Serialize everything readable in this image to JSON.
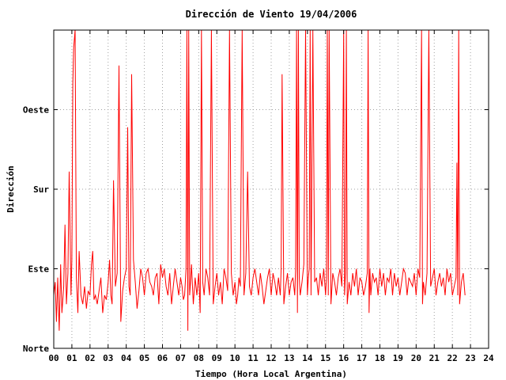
{
  "chart_data": {
    "type": "line",
    "title": "Dirección de Viento 19/04/2006",
    "xlabel": "Tiempo (Hora Local Argentina)",
    "ylabel": "Dirección",
    "xlim": [
      0,
      24
    ],
    "ylim": [
      0,
      360
    ],
    "x_ticks": [
      0,
      1,
      2,
      3,
      4,
      5,
      6,
      7,
      8,
      9,
      10,
      11,
      12,
      13,
      14,
      15,
      16,
      17,
      18,
      19,
      20,
      21,
      22,
      23,
      24
    ],
    "x_tick_labels": [
      "00",
      "01",
      "02",
      "03",
      "04",
      "05",
      "06",
      "07",
      "08",
      "09",
      "10",
      "11",
      "12",
      "13",
      "14",
      "15",
      "16",
      "17",
      "18",
      "19",
      "20",
      "21",
      "22",
      "23",
      "24"
    ],
    "y_ticks": [
      0,
      90,
      180,
      270
    ],
    "y_tick_labels": [
      "Norte",
      "Este",
      "Sur",
      "Oeste"
    ],
    "grid": true,
    "series": [
      {
        "color": "#ff0000",
        "x": [
          0.0,
          0.08,
          0.15,
          0.22,
          0.3,
          0.38,
          0.45,
          0.55,
          0.62,
          0.7,
          0.78,
          0.85,
          0.95,
          1.0,
          1.05,
          1.1,
          1.18,
          1.25,
          1.33,
          1.4,
          1.5,
          1.6,
          1.7,
          1.8,
          1.9,
          2.0,
          2.08,
          2.15,
          2.22,
          2.3,
          2.4,
          2.5,
          2.6,
          2.7,
          2.8,
          2.9,
          3.0,
          3.08,
          3.15,
          3.22,
          3.3,
          3.4,
          3.5,
          3.6,
          3.7,
          3.8,
          3.9,
          4.0,
          4.08,
          4.15,
          4.22,
          4.3,
          4.4,
          4.5,
          4.6,
          4.7,
          4.8,
          4.9,
          5.0,
          5.1,
          5.2,
          5.3,
          5.4,
          5.5,
          5.6,
          5.7,
          5.8,
          5.9,
          6.0,
          6.1,
          6.2,
          6.3,
          6.4,
          6.5,
          6.6,
          6.7,
          6.8,
          6.9,
          7.0,
          7.08,
          7.15,
          7.22,
          7.3,
          7.35,
          7.4,
          7.45,
          7.5,
          7.55,
          7.6,
          7.7,
          7.8,
          7.9,
          8.0,
          8.08,
          8.15,
          8.22,
          8.3,
          8.4,
          8.5,
          8.6,
          8.7,
          8.8,
          8.9,
          9.0,
          9.1,
          9.2,
          9.3,
          9.4,
          9.5,
          9.6,
          9.7,
          9.8,
          9.9,
          10.0,
          10.08,
          10.15,
          10.22,
          10.3,
          10.4,
          10.5,
          10.6,
          10.7,
          10.8,
          10.9,
          11.0,
          11.1,
          11.2,
          11.3,
          11.4,
          11.5,
          11.6,
          11.7,
          11.8,
          11.9,
          12.0,
          12.1,
          12.2,
          12.3,
          12.4,
          12.5,
          12.55,
          12.6,
          12.7,
          12.8,
          12.9,
          13.0,
          13.1,
          13.2,
          13.3,
          13.35,
          13.4,
          13.45,
          13.5,
          13.55,
          13.6,
          13.7,
          13.8,
          13.9,
          14.0,
          14.05,
          14.1,
          14.15,
          14.2,
          14.3,
          14.4,
          14.5,
          14.6,
          14.7,
          14.8,
          14.9,
          15.0,
          15.05,
          15.1,
          15.15,
          15.2,
          15.3,
          15.4,
          15.5,
          15.6,
          15.7,
          15.8,
          15.9,
          16.0,
          16.05,
          16.1,
          16.15,
          16.2,
          16.3,
          16.4,
          16.5,
          16.6,
          16.7,
          16.8,
          16.9,
          17.0,
          17.1,
          17.2,
          17.3,
          17.35,
          17.4,
          17.45,
          17.5,
          17.6,
          17.7,
          17.8,
          17.9,
          18.0,
          18.1,
          18.2,
          18.3,
          18.4,
          18.5,
          18.6,
          18.7,
          18.8,
          18.9,
          19.0,
          19.1,
          19.2,
          19.3,
          19.4,
          19.5,
          19.6,
          19.7,
          19.8,
          19.9,
          20.0,
          20.1,
          20.2,
          20.3,
          20.35,
          20.4,
          20.5,
          20.6,
          20.7,
          20.8,
          20.9,
          21.0,
          21.1,
          21.2,
          21.3,
          21.4,
          21.5,
          21.6,
          21.7,
          21.8,
          21.9,
          22.0,
          22.1,
          22.2,
          22.25,
          22.3,
          22.35,
          22.4,
          22.5,
          22.6,
          22.7
        ],
        "y": [
          60,
          75,
          30,
          80,
          20,
          95,
          40,
          70,
          140,
          50,
          85,
          200,
          60,
          100,
          300,
          340,
          360,
          80,
          40,
          110,
          60,
          50,
          70,
          45,
          65,
          60,
          95,
          110,
          55,
          60,
          50,
          65,
          80,
          40,
          60,
          55,
          75,
          100,
          60,
          50,
          190,
          70,
          85,
          320,
          30,
          65,
          80,
          90,
          250,
          70,
          60,
          310,
          100,
          75,
          45,
          65,
          90,
          80,
          60,
          85,
          90,
          75,
          70,
          60,
          80,
          85,
          50,
          95,
          80,
          90,
          70,
          60,
          85,
          50,
          70,
          90,
          75,
          60,
          80,
          70,
          55,
          60,
          90,
          360,
          20,
          360,
          60,
          75,
          95,
          50,
          80,
          60,
          85,
          40,
          360,
          75,
          60,
          90,
          80,
          60,
          360,
          50,
          70,
          85,
          60,
          75,
          50,
          90,
          80,
          65,
          360,
          85,
          60,
          75,
          50,
          60,
          80,
          70,
          360,
          60,
          85,
          200,
          70,
          60,
          80,
          90,
          75,
          60,
          85,
          70,
          50,
          65,
          80,
          90,
          60,
          85,
          75,
          60,
          80,
          60,
          90,
          310,
          50,
          70,
          85,
          60,
          75,
          80,
          60,
          90,
          360,
          40,
          360,
          80,
          60,
          75,
          95,
          360,
          60,
          80,
          90,
          360,
          60,
          360,
          75,
          80,
          60,
          85,
          70,
          90,
          60,
          80,
          360,
          60,
          360,
          50,
          85,
          75,
          60,
          80,
          90,
          70,
          360,
          60,
          85,
          360,
          50,
          75,
          60,
          85,
          70,
          90,
          60,
          80,
          75,
          60,
          70,
          85,
          360,
          40,
          90,
          60,
          85,
          75,
          80,
          60,
          90,
          70,
          85,
          60,
          80,
          75,
          90,
          60,
          85,
          70,
          80,
          60,
          75,
          90,
          85,
          60,
          80,
          75,
          70,
          85,
          60,
          90,
          80,
          360,
          50,
          75,
          60,
          85,
          360,
          70,
          80,
          90,
          60,
          75,
          85,
          70,
          80,
          60,
          90,
          75,
          85,
          60,
          70,
          80,
          210,
          60,
          360,
          50,
          75,
          85,
          60
        ]
      }
    ]
  }
}
